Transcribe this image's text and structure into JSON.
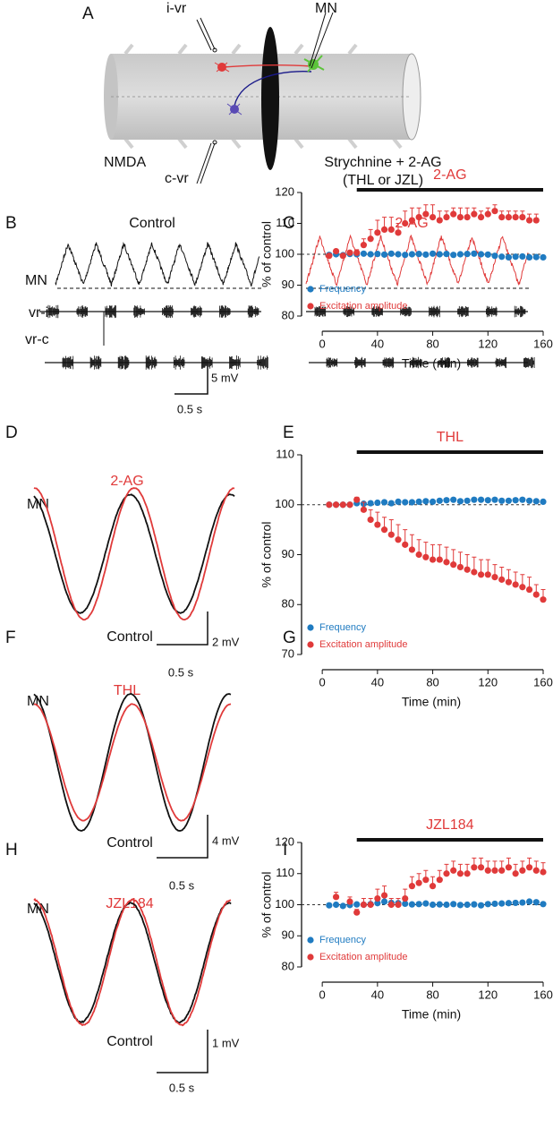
{
  "panel_labels": [
    "A",
    "B",
    "C",
    "D",
    "E",
    "F",
    "G",
    "H",
    "I"
  ],
  "diagram": {
    "labels": [
      "i-vr",
      "MN",
      "NMDA",
      "c-vr",
      "Strychnine + 2-AG",
      "(THL or JZL)"
    ]
  },
  "traces": {
    "B": {
      "title": "Control",
      "rows": [
        "MN",
        "vr-i",
        "vr-c"
      ],
      "scale_y": "5 mV",
      "scale_x": "0.5 s"
    },
    "C": {
      "title": "2-AG"
    },
    "D": {
      "title": "2-AG",
      "row": "MN",
      "baseline": "Control",
      "scale_y": "2 mV",
      "scale_x": "0.5 s"
    },
    "F": {
      "title": "THL",
      "row": "MN",
      "baseline": "Control",
      "scale_y": "4 mV",
      "scale_x": "0.5 s"
    },
    "H": {
      "title": "JZL184",
      "row": "MN",
      "baseline": "Control",
      "scale_y": "1 mV",
      "scale_x": "0.5 s"
    }
  },
  "chart_data": [
    {
      "type": "scatter",
      "annotation": "2-AG",
      "bar": [
        25,
        160
      ],
      "xlabel": "Time (min)",
      "ylabel": "% of control",
      "x": [
        5,
        10,
        15,
        20,
        25,
        30,
        35,
        40,
        45,
        50,
        55,
        60,
        65,
        70,
        75,
        80,
        85,
        90,
        95,
        100,
        105,
        110,
        115,
        120,
        125,
        130,
        135,
        140,
        145,
        150,
        155,
        160
      ],
      "xlim": [
        -15,
        160
      ],
      "xticks": [
        0,
        40,
        80,
        120,
        160
      ],
      "ylim": [
        80,
        120
      ],
      "yticks": [
        80,
        90,
        100,
        110,
        120
      ],
      "reference_line": 100,
      "legend": "lower left",
      "series": [
        {
          "name": "Frequency",
          "color": "#1f7bc1",
          "values": [
            99.8,
            100,
            99.7,
            100.1,
            100,
            100.2,
            100,
            100.1,
            99.9,
            100.2,
            100,
            99.8,
            100,
            100.1,
            99.9,
            100.2,
            100,
            100.1,
            99.8,
            100,
            100.1,
            100.2,
            100,
            99.9,
            99.5,
            99.2,
            99,
            99.2,
            99.3,
            99,
            99.1,
            99
          ]
        },
        {
          "name": "Excitation amplitude",
          "color": "#e03a3a",
          "values": [
            99.5,
            101,
            99.5,
            100.5,
            100.5,
            103,
            105,
            107,
            108,
            108,
            107,
            110,
            111,
            112,
            113,
            112,
            111,
            112,
            113,
            112,
            112,
            113,
            112,
            113,
            114,
            112,
            112,
            112,
            112,
            111,
            111,
            null
          ],
          "errors": [
            0.5,
            0.5,
            0.5,
            0.5,
            1,
            2,
            3,
            4,
            4,
            4,
            3,
            4,
            4,
            3,
            3,
            4,
            3,
            2,
            2,
            3,
            3,
            2,
            2,
            2,
            2,
            2,
            2,
            2,
            2,
            2,
            2,
            null
          ]
        }
      ]
    },
    {
      "type": "scatter",
      "annotation": "THL",
      "bar": [
        25,
        160
      ],
      "xlabel": "Time (min)",
      "ylabel": "% of control",
      "x": [
        5,
        10,
        15,
        20,
        25,
        30,
        35,
        40,
        45,
        50,
        55,
        60,
        65,
        70,
        75,
        80,
        85,
        90,
        95,
        100,
        105,
        110,
        115,
        120,
        125,
        130,
        135,
        140,
        145,
        150,
        155,
        160
      ],
      "xlim": [
        -15,
        160
      ],
      "xticks": [
        0,
        40,
        80,
        120,
        160
      ],
      "ylim": [
        70,
        110
      ],
      "yticks": [
        70,
        80,
        90,
        100,
        110
      ],
      "reference_line": 100,
      "legend": "lower left",
      "series": [
        {
          "name": "Frequency",
          "color": "#1f7bc1",
          "values": [
            100,
            100,
            100,
            100,
            100.3,
            100.2,
            100.3,
            100.4,
            100.5,
            100.3,
            100.6,
            100.5,
            100.5,
            100.6,
            100.7,
            100.6,
            100.8,
            100.9,
            101,
            100.7,
            100.8,
            101,
            101,
            100.9,
            101,
            100.8,
            100.8,
            100.9,
            101,
            100.8,
            100.7,
            100.6
          ]
        },
        {
          "name": "Excitation amplitude",
          "color": "#e03a3a",
          "values": [
            100,
            100,
            100,
            100,
            101,
            99,
            97,
            96,
            95,
            94,
            93,
            92,
            91,
            90,
            89.5,
            89,
            89,
            88.5,
            88,
            87.5,
            87,
            86.5,
            86,
            86,
            85.5,
            85,
            84.5,
            84,
            83.5,
            83,
            82,
            81
          ],
          "errors": [
            0.3,
            0.3,
            0.3,
            0.3,
            0.5,
            1.5,
            2,
            2.5,
            2.5,
            3,
            3,
            3,
            3,
            3,
            3,
            3,
            3,
            3,
            3,
            3,
            3,
            3,
            3,
            3,
            2.5,
            2.5,
            2.5,
            2.5,
            2.5,
            2.5,
            2,
            2
          ]
        }
      ]
    },
    {
      "type": "scatter",
      "annotation": "JZL184",
      "bar": [
        25,
        160
      ],
      "xlabel": "Time (min)",
      "ylabel": "% of control",
      "x": [
        5,
        10,
        15,
        20,
        25,
        30,
        35,
        40,
        45,
        50,
        55,
        60,
        65,
        70,
        75,
        80,
        85,
        90,
        95,
        100,
        105,
        110,
        115,
        120,
        125,
        130,
        135,
        140,
        145,
        150,
        155,
        160
      ],
      "xlim": [
        -15,
        160
      ],
      "xticks": [
        0,
        40,
        80,
        120,
        160
      ],
      "ylim": [
        80,
        120
      ],
      "yticks": [
        80,
        90,
        100,
        110,
        120
      ],
      "reference_line": 100,
      "legend": "lower left",
      "series": [
        {
          "name": "Frequency",
          "color": "#1f7bc1",
          "values": [
            99.8,
            100,
            99.6,
            99.9,
            100.1,
            100,
            100.2,
            100.5,
            101,
            100.6,
            100.5,
            100.3,
            100.1,
            100.2,
            100.4,
            100,
            100.1,
            100,
            100.2,
            99.9,
            100,
            100.1,
            99.8,
            100.2,
            100.3,
            100.4,
            100.5,
            100.6,
            100.7,
            101,
            100.8,
            100.2
          ]
        },
        {
          "name": "Excitation amplitude",
          "color": "#e03a3a",
          "values": [
            null,
            102.5,
            null,
            101,
            97.5,
            100,
            100,
            102,
            103,
            100,
            100,
            102,
            106,
            107,
            108,
            106,
            108,
            110,
            111,
            110,
            110,
            112,
            112,
            111,
            111,
            111,
            112,
            110,
            111,
            112,
            111,
            110.5
          ],
          "errors": [
            null,
            1.5,
            null,
            1.5,
            1,
            2,
            2,
            3,
            3,
            2,
            2,
            3,
            3,
            3,
            3,
            3,
            3,
            3,
            3,
            3,
            3,
            3,
            3,
            3,
            3,
            3,
            3,
            3,
            3,
            3,
            3,
            3
          ]
        }
      ]
    }
  ]
}
